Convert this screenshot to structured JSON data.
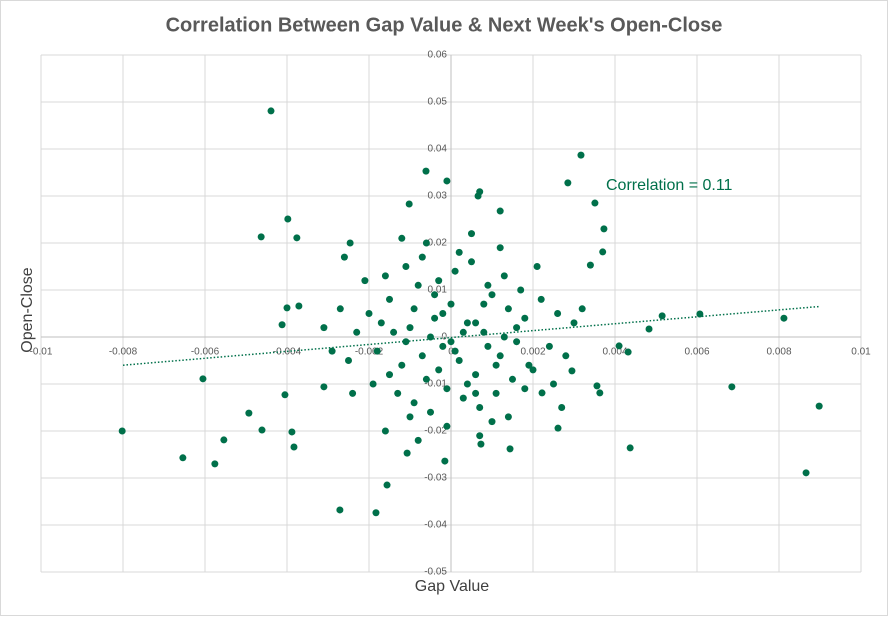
{
  "chart_data": {
    "type": "scatter",
    "title": "Correlation Between Gap Value & Next Week's Open-Close",
    "x_label": "Gap Value",
    "y_label": "Open-Close",
    "annotation": "Correlation = 0.11",
    "color": "#00704a",
    "grid": true,
    "xlim": [
      -0.01,
      0.01
    ],
    "ylim": [
      -0.05,
      0.06
    ],
    "xticks": [
      -0.01,
      -0.008,
      -0.006,
      -0.004,
      -0.002,
      0,
      0.002,
      0.004,
      0.006,
      0.008,
      0.01
    ],
    "yticks": [
      -0.05,
      -0.04,
      -0.03,
      -0.02,
      -0.01,
      0,
      0.01,
      0.02,
      0.03,
      0.04,
      0.05,
      0.06
    ],
    "trendline": {
      "x": [
        -0.008,
        0.009
      ],
      "y": [
        -0.006,
        0.0065
      ]
    },
    "series": [
      {
        "name": "Open-Close",
        "x": [
          -0.00439,
          0.00317,
          0.00285,
          0.00351,
          0.00373,
          -0.00398,
          -0.00463,
          -0.00376,
          0.0037,
          0.0034,
          0.00812,
          0.00607,
          0.00515,
          0.00483,
          0.0041,
          0.00432,
          0.00685,
          0.00356,
          0.00363,
          0.00898,
          0.00866,
          0.00437,
          -0.00802,
          -0.00654,
          -0.00576,
          -0.00554,
          -0.00493,
          -0.00461,
          -0.00605,
          -0.00405,
          -0.00388,
          -0.00383,
          -0.00271,
          -0.00183,
          -0.00156,
          -0.00107,
          -0.00015,
          0.00073,
          0.00144,
          0.00261,
          0.00222,
          0.00295,
          -0.0031,
          -0.004,
          -0.00371,
          -0.00412,
          -0.00246,
          -0.00061,
          -0.0001,
          -0.00102,
          0.00066,
          0.0007,
          0.0012,
          -0.002,
          -0.0018,
          -0.0015,
          -0.0012,
          -0.001,
          -0.0008,
          -0.0006,
          -0.0004,
          -0.0002,
          0,
          0.0002,
          0.0004,
          0.0006,
          0.0008,
          0.001,
          0.0012,
          0.0014,
          0.0016,
          0.0018,
          0.002,
          -0.0019,
          -0.0016,
          -0.0013,
          -0.0011,
          -0.0009,
          -0.0007,
          -0.0005,
          -0.0003,
          -0.0001,
          0.0001,
          0.0003,
          0.0005,
          0.0007,
          0.0009,
          0.0011,
          0.0013,
          0.0015,
          0.0017,
          0.0019,
          0.0022,
          -0.0023,
          -0.0025,
          -0.0027,
          -0.0029,
          -0.0031,
          0.0024,
          0.0026,
          0.0028,
          0.003,
          0.0032,
          -0.0005,
          0.0003,
          -0.0002,
          0.0006,
          0.0001,
          -0.0007,
          0.0009,
          -0.0014,
          0.0013,
          0,
          -0.0003,
          0.0004,
          -0.001,
          0.001,
          -0.0006,
          0.0005,
          -0.0016,
          0.0014,
          -0.0021,
          0.0021,
          -0.0024,
          0.0025,
          -0.0008,
          0.0007,
          -0.0012,
          0.0012,
          0.0002,
          -0.0001,
          -0.0026,
          0.0027,
          -0.0017,
          0.0016,
          -0.0004,
          0.0008,
          -0.0011,
          0.0011,
          -0.0009,
          0.0006,
          -0.0015,
          0.0018
        ],
        "values": [
          0.0481,
          0.0387,
          0.0328,
          0.0285,
          0.023,
          0.0251,
          0.0213,
          0.0211,
          0.0181,
          0.0153,
          0.004,
          0.0049,
          0.0045,
          0.0017,
          -0.0019,
          -0.0032,
          -0.0106,
          -0.0104,
          -0.0119,
          -0.0147,
          -0.0289,
          -0.0236,
          -0.02,
          -0.0257,
          -0.027,
          -0.0219,
          -0.0162,
          -0.0198,
          -0.0089,
          -0.0123,
          -0.0202,
          -0.0234,
          -0.0368,
          -0.0374,
          -0.0315,
          -0.0247,
          -0.0264,
          -0.0228,
          -0.0238,
          -0.0194,
          -0.0119,
          -0.0072,
          -0.0106,
          0.0062,
          0.0066,
          0.0026,
          0.02,
          0.0353,
          0.0332,
          0.0283,
          0.03,
          0.0309,
          0.0268,
          0.005,
          -0.003,
          0.008,
          -0.006,
          0.002,
          0.011,
          -0.009,
          0.004,
          -0.002,
          0.007,
          -0.005,
          0.003,
          -0.008,
          0.001,
          0.009,
          -0.004,
          0.006,
          -0.001,
          0.004,
          -0.007,
          -0.01,
          0.013,
          -0.012,
          0.015,
          -0.014,
          0.017,
          -0.016,
          0.012,
          -0.011,
          0.014,
          -0.013,
          0.016,
          -0.015,
          0.011,
          -0.012,
          0.013,
          -0.009,
          0.01,
          -0.006,
          0.008,
          0.001,
          -0.005,
          0.006,
          -0.003,
          0.002,
          -0.002,
          0.005,
          -0.004,
          0.003,
          0.006,
          0,
          0.001,
          0.005,
          0.003,
          -0.003,
          -0.004,
          -0.002,
          0.001,
          0,
          -0.001,
          -0.007,
          -0.01,
          -0.017,
          -0.018,
          0.02,
          0.022,
          -0.02,
          -0.017,
          0.012,
          0.015,
          -0.012,
          -0.01,
          -0.022,
          -0.021,
          0.021,
          0.019,
          0.018,
          -0.019,
          0.017,
          -0.015,
          0.003,
          0.002,
          0.009,
          0.007,
          -0.001,
          -0.006,
          0.006,
          -0.012,
          -0.008,
          -0.011
        ]
      }
    ]
  }
}
